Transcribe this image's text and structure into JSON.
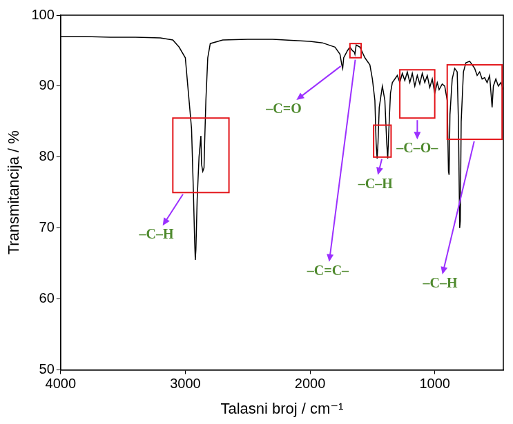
{
  "chart_data": {
    "type": "line",
    "x_label": "Talasni broj / cm⁻¹",
    "y_label": "Transmitancija / %",
    "color": "#000000",
    "grid": false,
    "xlim": [
      4000,
      450
    ],
    "xticks": [
      4000,
      3000,
      2000,
      1000
    ],
    "ylim": [
      50,
      100
    ],
    "yticks": [
      50,
      60,
      70,
      80,
      90,
      100
    ],
    "x": [
      4000,
      3800,
      3600,
      3400,
      3200,
      3100,
      3050,
      3000,
      2980,
      2960,
      2950,
      2935,
      2925,
      2920,
      2915,
      2905,
      2890,
      2875,
      2870,
      2860,
      2850,
      2845,
      2835,
      2820,
      2800,
      2700,
      2500,
      2300,
      2100,
      2000,
      1900,
      1800,
      1760,
      1745,
      1738,
      1730,
      1715,
      1700,
      1680,
      1660,
      1645,
      1640,
      1630,
      1600,
      1560,
      1520,
      1500,
      1480,
      1470,
      1462,
      1455,
      1445,
      1420,
      1400,
      1385,
      1377,
      1370,
      1355,
      1340,
      1300,
      1280,
      1260,
      1240,
      1220,
      1200,
      1180,
      1160,
      1140,
      1120,
      1100,
      1080,
      1060,
      1040,
      1020,
      1000,
      980,
      965,
      940,
      920,
      900,
      890,
      885,
      878,
      860,
      840,
      820,
      810,
      800,
      795,
      788,
      770,
      750,
      720,
      700,
      680,
      660,
      640,
      620,
      600,
      580,
      560,
      540,
      530,
      510,
      490,
      470,
      450
    ],
    "values": [
      97,
      97,
      96.9,
      96.9,
      96.8,
      96.5,
      95.5,
      94,
      90,
      86,
      84,
      75,
      68,
      65.5,
      67,
      74,
      80,
      83,
      79,
      78,
      78.5,
      82,
      88,
      94,
      96,
      96.5,
      96.6,
      96.6,
      96.4,
      96.3,
      96.1,
      95.5,
      94.5,
      93,
      92.5,
      94,
      94.5,
      95,
      95.5,
      95,
      94.8,
      94.5,
      95.8,
      95.5,
      94,
      93,
      91,
      88,
      82,
      79.8,
      82,
      87,
      90,
      88,
      82,
      79.8,
      83,
      89,
      90.5,
      91.5,
      90.5,
      91.8,
      90.8,
      92,
      90.5,
      91.8,
      90,
      91.5,
      90.3,
      91.8,
      90.5,
      91.5,
      89.8,
      91,
      89,
      90.5,
      89.5,
      90.3,
      90,
      88,
      78,
      77.5,
      86,
      91,
      92.5,
      92,
      85,
      70,
      71,
      85,
      92,
      93.3,
      93.5,
      93,
      92.5,
      91.5,
      92,
      91,
      91.2,
      90.5,
      91.5,
      87,
      90,
      91,
      90,
      90.5,
      89.5
    ],
    "annotations": [
      {
        "text": "–C–H",
        "box": {
          "x": [
            3100,
            2650
          ],
          "y": [
            75,
            85.5
          ]
        }
      },
      {
        "text": "–C=O",
        "point": {
          "x": 1740,
          "y": 93
        }
      },
      {
        "text": "–C=C–",
        "box": {
          "x": [
            1680,
            1590
          ],
          "y": [
            94,
            96
          ]
        }
      },
      {
        "text": "–C–H",
        "box": {
          "x": [
            1490,
            1350
          ],
          "y": [
            80,
            84.5
          ]
        }
      },
      {
        "text": "–C–O–",
        "box": {
          "x": [
            1280,
            1000
          ],
          "y": [
            85.5,
            92.3
          ]
        }
      },
      {
        "text": "–C–H",
        "box": {
          "x": [
            900,
            460
          ],
          "y": [
            82.5,
            93
          ]
        }
      }
    ]
  }
}
